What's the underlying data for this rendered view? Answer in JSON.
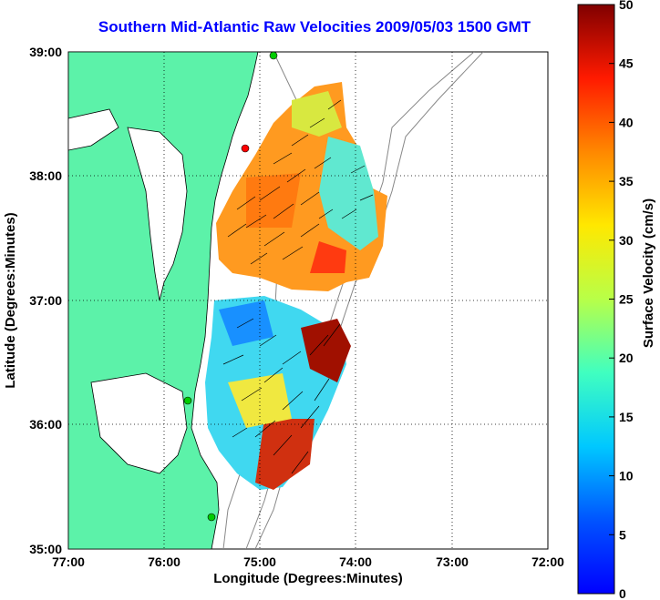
{
  "title": "Southern Mid-Atlantic Raw Velocities 2009/05/03 1500 GMT",
  "x_axis": {
    "label": "Longitude (Degrees:Minutes)",
    "ticks": [
      "77:00",
      "76:00",
      "75:00",
      "74:00",
      "73:00",
      "72:00"
    ]
  },
  "y_axis": {
    "label": "Latitude (Degrees:Minutes)",
    "ticks": [
      "39:00",
      "38:00",
      "37:00",
      "36:00",
      "35:00"
    ]
  },
  "colorbar": {
    "label": "Surface Velocity (cm/s)",
    "ticks": [
      "50",
      "45",
      "40",
      "35",
      "30",
      "25",
      "20",
      "15",
      "10",
      "5",
      "0"
    ],
    "range": [
      0,
      50
    ],
    "colormap": "jet"
  },
  "colors": {
    "land": "#5cf2a9",
    "water": "#ffffff",
    "title": "#0000ff",
    "vectors": "#000000",
    "station_markers": [
      "#ff0000",
      "#00cc00"
    ]
  },
  "map_extent": {
    "lon": [
      -77,
      -72
    ],
    "lat": [
      35,
      39
    ]
  },
  "chart_data": {
    "type": "heatmap",
    "title": "Southern Mid-Atlantic Raw Velocities 2009/05/03 1500 GMT",
    "xlabel": "Longitude (Degrees:Minutes)",
    "ylabel": "Latitude (Degrees:Minutes)",
    "xlim": [
      -77,
      -72
    ],
    "ylim": [
      35,
      39
    ],
    "colorbar_label": "Surface Velocity (cm/s)",
    "clim": [
      0,
      50
    ],
    "grid": true,
    "vector_field": true
  }
}
